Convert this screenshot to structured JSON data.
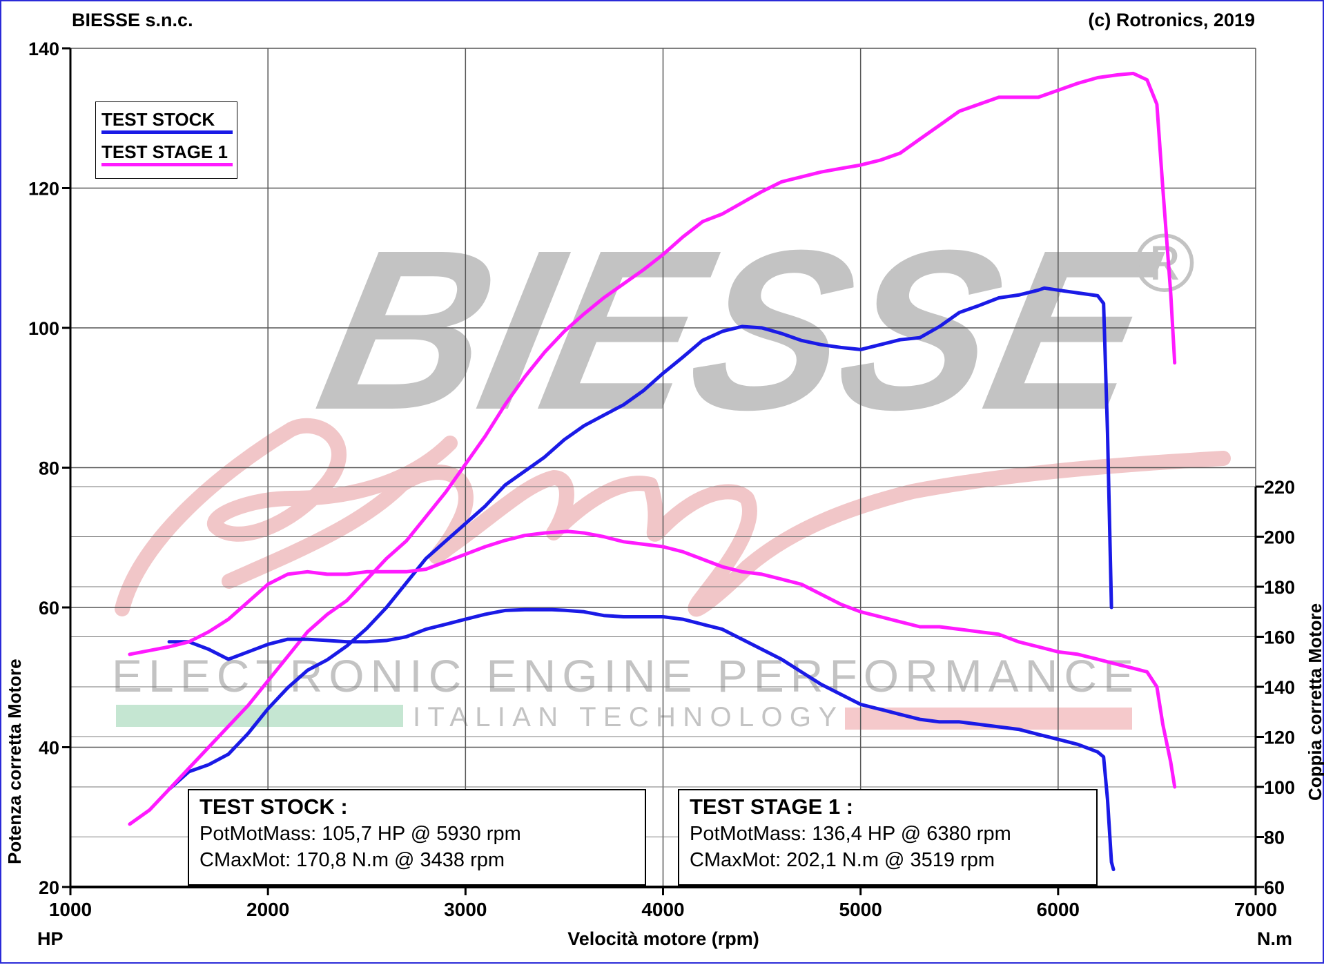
{
  "header": {
    "left": "BIESSE s.n.c.",
    "right": "(c) Rotronics, 2019"
  },
  "watermark": {
    "brand": "BIESSE",
    "registered": "®",
    "script": "Racing",
    "line1": "ELECTRONIC ENGINE PERFORMANCE",
    "line2": "ITALIAN TECHNOLOGY",
    "colors": {
      "brand": "#c3c3c3",
      "script": "#f1c6c8",
      "green_bar": "#c5e6d2",
      "pink_bar": "#f5c9cb"
    }
  },
  "axes": {
    "x_label": "Velocità motore (rpm)",
    "y_left_label": "Potenza corretta Motore",
    "y_right_label": "Coppia corretta Motore",
    "unit_left": "HP",
    "unit_right": "N.m"
  },
  "legend": {
    "items": [
      {
        "label": "TEST STOCK",
        "color": "#1a1ae6"
      },
      {
        "label": "TEST STAGE 1",
        "color": "#ff1aff"
      }
    ]
  },
  "info_boxes": [
    {
      "title": "TEST STOCK :",
      "line1": "PotMotMass: 105,7 HP @ 5930 rpm",
      "line2": "CMaxMot: 170,8 N.m @ 3438 rpm"
    },
    {
      "title": "TEST STAGE 1 :",
      "line1": "PotMotMass: 136,4 HP @ 6380 rpm",
      "line2": "CMaxMot: 202,1 N.m @ 3519 rpm"
    }
  ],
  "chart_data": {
    "type": "line",
    "xlabel": "Velocità motore (rpm)",
    "ylabel": "Potenza corretta Motore",
    "y2label": "Coppia corretta Motore",
    "xlim": [
      1000,
      7000
    ],
    "ylim": [
      20,
      140
    ],
    "y2lim": [
      60,
      220
    ],
    "x_ticks": [
      1000,
      2000,
      3000,
      4000,
      5000,
      6000,
      7000
    ],
    "y_ticks": [
      20,
      40,
      60,
      80,
      100,
      120,
      140
    ],
    "y2_ticks": [
      60,
      80,
      100,
      120,
      140,
      160,
      180,
      200,
      220
    ],
    "grid": true,
    "legend_position": "top-left",
    "series": [
      {
        "name": "TEST STOCK",
        "axis": "left",
        "color": "#1a1ae6",
        "points": [
          [
            1500,
            34
          ],
          [
            1600,
            36.5
          ],
          [
            1700,
            37.5
          ],
          [
            1800,
            39
          ],
          [
            1900,
            42
          ],
          [
            2000,
            45.5
          ],
          [
            2100,
            48.5
          ],
          [
            2200,
            51
          ],
          [
            2300,
            52.5
          ],
          [
            2400,
            54.5
          ],
          [
            2500,
            57
          ],
          [
            2600,
            60
          ],
          [
            2700,
            63.5
          ],
          [
            2800,
            67
          ],
          [
            2900,
            69.5
          ],
          [
            3000,
            72
          ],
          [
            3100,
            74.5
          ],
          [
            3200,
            77.5
          ],
          [
            3300,
            79.5
          ],
          [
            3400,
            81.5
          ],
          [
            3500,
            84
          ],
          [
            3600,
            86
          ],
          [
            3700,
            87.5
          ],
          [
            3800,
            89
          ],
          [
            3900,
            91
          ],
          [
            4000,
            93.5
          ],
          [
            4100,
            95.8
          ],
          [
            4200,
            98.2
          ],
          [
            4300,
            99.5
          ],
          [
            4400,
            100.2
          ],
          [
            4500,
            100
          ],
          [
            4600,
            99.2
          ],
          [
            4700,
            98.2
          ],
          [
            4800,
            97.6
          ],
          [
            4900,
            97.2
          ],
          [
            5000,
            96.9
          ],
          [
            5100,
            97.6
          ],
          [
            5200,
            98.3
          ],
          [
            5300,
            98.6
          ],
          [
            5400,
            100.2
          ],
          [
            5500,
            102.2
          ],
          [
            5600,
            103.2
          ],
          [
            5700,
            104.3
          ],
          [
            5800,
            104.7
          ],
          [
            5900,
            105.4
          ],
          [
            5930,
            105.7
          ],
          [
            6000,
            105.4
          ],
          [
            6100,
            105
          ],
          [
            6200,
            104.6
          ],
          [
            6230,
            103.5
          ],
          [
            6250,
            85
          ],
          [
            6270,
            60
          ]
        ]
      },
      {
        "name": "TEST STAGE 1",
        "axis": "left",
        "color": "#ff1aff",
        "points": [
          [
            1300,
            29
          ],
          [
            1400,
            31
          ],
          [
            1500,
            34
          ],
          [
            1600,
            37
          ],
          [
            1700,
            40
          ],
          [
            1800,
            43
          ],
          [
            1900,
            46
          ],
          [
            2000,
            49.5
          ],
          [
            2100,
            53
          ],
          [
            2200,
            56.5
          ],
          [
            2300,
            59
          ],
          [
            2400,
            61
          ],
          [
            2500,
            64
          ],
          [
            2600,
            67
          ],
          [
            2700,
            69.5
          ],
          [
            2800,
            73
          ],
          [
            2900,
            76.5
          ],
          [
            3000,
            80.5
          ],
          [
            3100,
            84.5
          ],
          [
            3200,
            89
          ],
          [
            3300,
            93
          ],
          [
            3400,
            96.5
          ],
          [
            3500,
            99.5
          ],
          [
            3600,
            102
          ],
          [
            3700,
            104.3
          ],
          [
            3800,
            106.3
          ],
          [
            3900,
            108.3
          ],
          [
            4000,
            110.5
          ],
          [
            4100,
            113
          ],
          [
            4200,
            115.2
          ],
          [
            4300,
            116.3
          ],
          [
            4400,
            117.9
          ],
          [
            4500,
            119.5
          ],
          [
            4600,
            120.9
          ],
          [
            4700,
            121.6
          ],
          [
            4800,
            122.3
          ],
          [
            4900,
            122.8
          ],
          [
            5000,
            123.3
          ],
          [
            5100,
            124
          ],
          [
            5200,
            125
          ],
          [
            5300,
            127
          ],
          [
            5400,
            129
          ],
          [
            5500,
            131
          ],
          [
            5600,
            132
          ],
          [
            5700,
            133
          ],
          [
            5800,
            133
          ],
          [
            5900,
            133
          ],
          [
            6000,
            134
          ],
          [
            6100,
            135
          ],
          [
            6200,
            135.8
          ],
          [
            6300,
            136.2
          ],
          [
            6380,
            136.4
          ],
          [
            6450,
            135.5
          ],
          [
            6500,
            132
          ],
          [
            6530,
            120
          ],
          [
            6570,
            105
          ],
          [
            6590,
            95
          ]
        ]
      },
      {
        "name": "TEST STOCK",
        "axis": "right",
        "color": "#1a1ae6",
        "points": [
          [
            1500,
            158
          ],
          [
            1600,
            158
          ],
          [
            1700,
            155
          ],
          [
            1800,
            151
          ],
          [
            1900,
            154
          ],
          [
            2000,
            157
          ],
          [
            2100,
            159
          ],
          [
            2200,
            159
          ],
          [
            2300,
            158.5
          ],
          [
            2400,
            158
          ],
          [
            2500,
            158
          ],
          [
            2600,
            158.5
          ],
          [
            2700,
            160
          ],
          [
            2800,
            163
          ],
          [
            2900,
            165
          ],
          [
            3000,
            167
          ],
          [
            3100,
            169
          ],
          [
            3200,
            170.5
          ],
          [
            3300,
            170.8
          ],
          [
            3438,
            170.8
          ],
          [
            3500,
            170.6
          ],
          [
            3600,
            170
          ],
          [
            3700,
            168.5
          ],
          [
            3800,
            168
          ],
          [
            3900,
            168
          ],
          [
            4000,
            168
          ],
          [
            4100,
            167
          ],
          [
            4200,
            165
          ],
          [
            4300,
            163
          ],
          [
            4400,
            159
          ],
          [
            4500,
            155
          ],
          [
            4600,
            151
          ],
          [
            4700,
            146
          ],
          [
            4800,
            141
          ],
          [
            4900,
            137
          ],
          [
            5000,
            133
          ],
          [
            5100,
            131
          ],
          [
            5200,
            129
          ],
          [
            5300,
            127
          ],
          [
            5400,
            126
          ],
          [
            5500,
            126
          ],
          [
            5600,
            125
          ],
          [
            5700,
            124
          ],
          [
            5800,
            123
          ],
          [
            5900,
            121
          ],
          [
            6000,
            119
          ],
          [
            6100,
            117
          ],
          [
            6200,
            114
          ],
          [
            6230,
            112
          ],
          [
            6250,
            95
          ],
          [
            6270,
            70
          ],
          [
            6280,
            67
          ]
        ]
      },
      {
        "name": "TEST STAGE 1",
        "axis": "right",
        "color": "#ff1aff",
        "points": [
          [
            1300,
            153
          ],
          [
            1400,
            154.5
          ],
          [
            1500,
            156
          ],
          [
            1600,
            158
          ],
          [
            1700,
            162
          ],
          [
            1800,
            167
          ],
          [
            1900,
            174
          ],
          [
            2000,
            181
          ],
          [
            2100,
            185
          ],
          [
            2200,
            186
          ],
          [
            2300,
            185
          ],
          [
            2400,
            185
          ],
          [
            2500,
            186
          ],
          [
            2600,
            186
          ],
          [
            2700,
            186
          ],
          [
            2800,
            187
          ],
          [
            2900,
            190
          ],
          [
            3000,
            193
          ],
          [
            3100,
            196
          ],
          [
            3200,
            198.5
          ],
          [
            3300,
            200.5
          ],
          [
            3400,
            201.5
          ],
          [
            3519,
            202.1
          ],
          [
            3600,
            201.5
          ],
          [
            3700,
            200
          ],
          [
            3800,
            198
          ],
          [
            3900,
            197
          ],
          [
            4000,
            196
          ],
          [
            4100,
            194
          ],
          [
            4200,
            191
          ],
          [
            4300,
            188
          ],
          [
            4400,
            186
          ],
          [
            4500,
            185
          ],
          [
            4600,
            183
          ],
          [
            4700,
            181
          ],
          [
            4800,
            177
          ],
          [
            4900,
            173
          ],
          [
            5000,
            170
          ],
          [
            5100,
            168
          ],
          [
            5200,
            166
          ],
          [
            5300,
            164
          ],
          [
            5400,
            164
          ],
          [
            5500,
            163
          ],
          [
            5600,
            162
          ],
          [
            5700,
            161
          ],
          [
            5800,
            158
          ],
          [
            5900,
            156
          ],
          [
            6000,
            154
          ],
          [
            6100,
            153
          ],
          [
            6200,
            151
          ],
          [
            6300,
            149
          ],
          [
            6400,
            147
          ],
          [
            6450,
            146
          ],
          [
            6500,
            140
          ],
          [
            6530,
            125
          ],
          [
            6570,
            110
          ],
          [
            6590,
            100
          ]
        ]
      }
    ]
  }
}
